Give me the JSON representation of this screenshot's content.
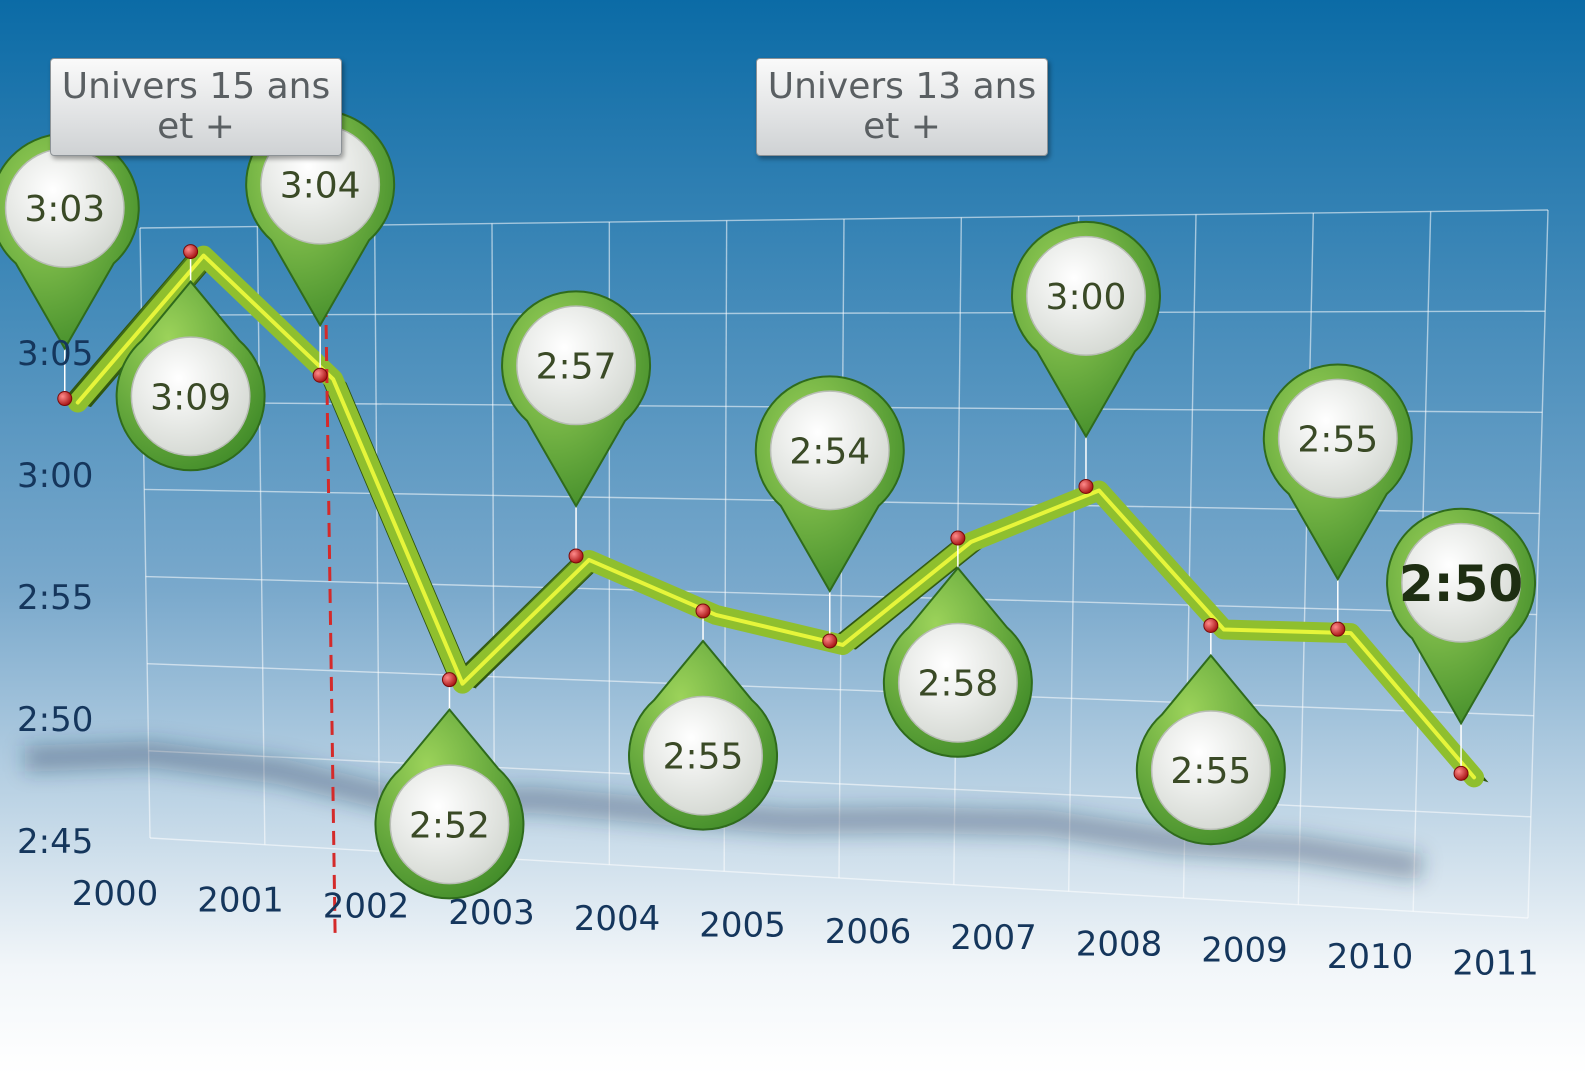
{
  "annotations": {
    "left_box": {
      "line1": "Univers 15 ans",
      "line2": "et +"
    },
    "right_box": {
      "line1": "Univers 13 ans",
      "line2": "et +"
    }
  },
  "colors": {
    "background_top": "#0b6ba6",
    "background_bottom": "#ffffff",
    "line": "#8fbf2e",
    "line_highlight": "#e6f53a",
    "marker": "#cc1a1a",
    "pin": "#5fa535",
    "axis_text": "#15365c",
    "divider": "#d42a2a"
  },
  "chart_data": {
    "type": "line",
    "x_label": "",
    "y_label": "",
    "x_categories": [
      "2000",
      "2001",
      "2002",
      "2003",
      "2004",
      "2005",
      "2006",
      "2007",
      "2008",
      "2009",
      "2010",
      "2011"
    ],
    "y_ticks": [
      "3:05",
      "3:00",
      "2:55",
      "2:50",
      "2:45"
    ],
    "y_range": [
      "2:45",
      "3:10"
    ],
    "grid": true,
    "data_labels": [
      "3:03",
      "3:09",
      "3:04",
      "2:52",
      "2:57",
      "2:55",
      "2:54",
      "2:58",
      "3:00",
      "2:55",
      "2:55",
      "2:50"
    ],
    "values_minutes": [
      183,
      189,
      184,
      172,
      177,
      175,
      174,
      178,
      180,
      175,
      175,
      170
    ],
    "divider_between": [
      "2002",
      "2003"
    ]
  }
}
